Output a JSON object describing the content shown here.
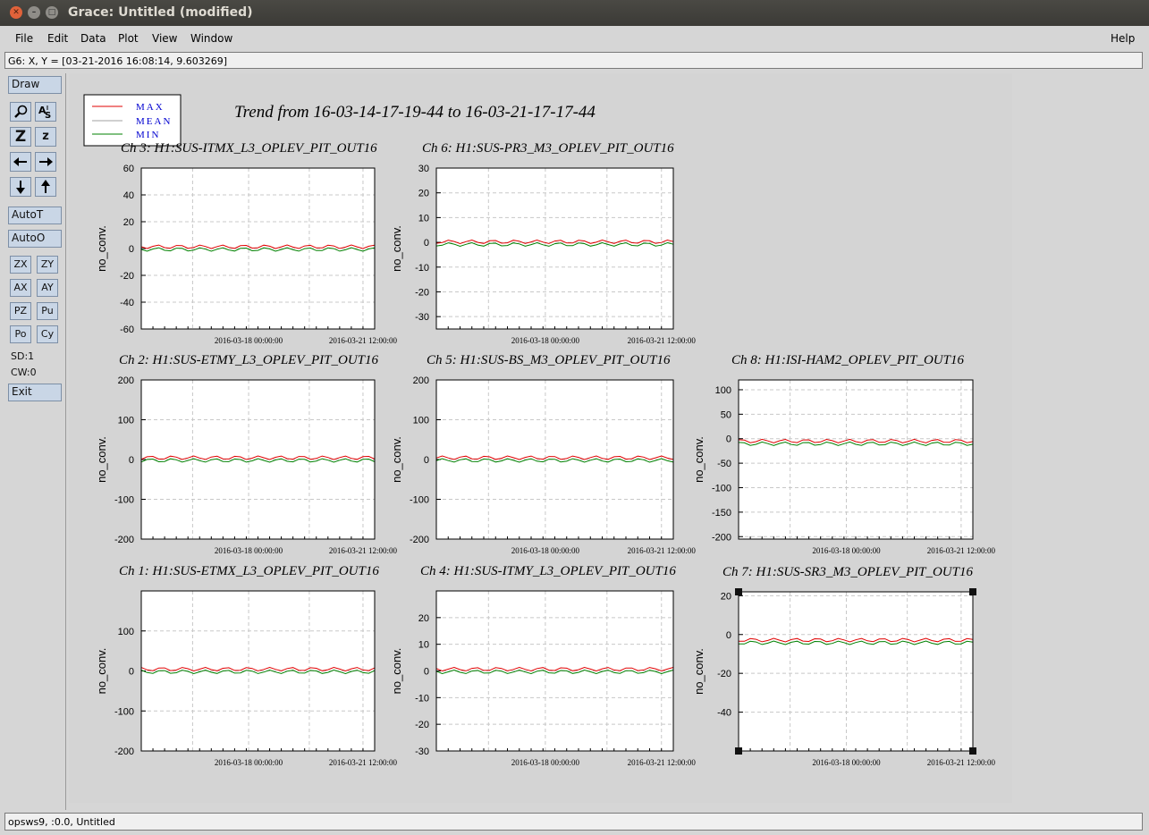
{
  "window": {
    "title": "Grace: Untitled (modified)"
  },
  "menu": {
    "file": "File",
    "edit": "Edit",
    "data": "Data",
    "plot": "Plot",
    "view": "View",
    "window": "Window",
    "help": "Help"
  },
  "locator": "G6: X, Y = [03-21-2016 16:08:14, 9.603269]",
  "toolbar": {
    "draw": "Draw",
    "zoom_icon": "magnifier-icon",
    "autoscale_text_icon": "autoscale-text-icon",
    "Z_label": "Z",
    "z_label": "z",
    "left_arrow_icon": "left-arrow-icon",
    "right_arrow_icon": "right-arrow-icon",
    "down_arrow_icon": "down-arrow-icon",
    "up_arrow_icon": "up-arrow-icon",
    "autot": "AutoT",
    "autoo": "AutoO",
    "zx": "ZX",
    "zy": "ZY",
    "ax": "AX",
    "ay": "AY",
    "pz": "PZ",
    "pu": "Pu",
    "po": "Po",
    "cy": "Cy",
    "sd": "SD:1",
    "cw": "CW:0",
    "exit": "Exit"
  },
  "status": "opsws9, :0.0, Untitled",
  "chart_data": {
    "type": "line",
    "title": "Trend from 16-03-14-17-19-44 to 16-03-21-17-17-44",
    "legend": {
      "placement": "top-left",
      "entries": [
        {
          "name": "MAX",
          "color": "#e00000"
        },
        {
          "name": "MEAN",
          "color": "#a0a0a0"
        },
        {
          "name": "MIN",
          "color": "#008000"
        }
      ]
    },
    "xtick_labels": [
      "2016-03-18 00:00:00",
      "2016-03-21 12:00:00"
    ],
    "ylabel": "no_conv.",
    "grid": true,
    "panels": [
      {
        "title": "Ch 3: H1:SUS-ITMX_L3_OPLEV_PIT_OUT16",
        "ylim": [
          -60,
          60
        ],
        "yticks": [
          60,
          40,
          20,
          0,
          -20,
          -40,
          -60
        ]
      },
      {
        "title": "Ch 6: H1:SUS-PR3_M3_OPLEV_PIT_OUT16",
        "ylim": [
          -35,
          30
        ],
        "yticks": [
          30,
          20,
          10,
          0,
          -10,
          -20,
          -30
        ]
      },
      {
        "title": "Ch 2: H1:SUS-ETMY_L3_OPLEV_PIT_OUT16",
        "ylim": [
          -200,
          200
        ],
        "yticks": [
          200,
          100,
          0,
          -100,
          -200
        ]
      },
      {
        "title": "Ch 5: H1:SUS-BS_M3_OPLEV_PIT_OUT16",
        "ylim": [
          -200,
          200
        ],
        "yticks": [
          200,
          100,
          0,
          -100,
          -200
        ]
      },
      {
        "title": "Ch 8: H1:ISI-HAM2_OPLEV_PIT_OUT16",
        "ylim": [
          -205,
          120
        ],
        "yticks": [
          100,
          50,
          0,
          -50,
          -100,
          -150,
          -200
        ]
      },
      {
        "title": "Ch 1: H1:SUS-ETMX_L3_OPLEV_PIT_OUT16",
        "ylim": [
          -200,
          200
        ],
        "yticks": [
          100,
          0,
          -100,
          -200
        ]
      },
      {
        "title": "Ch 4: H1:SUS-ITMY_L3_OPLEV_PIT_OUT16",
        "ylim": [
          -30,
          30
        ],
        "yticks": [
          20,
          10,
          0,
          -10,
          -20,
          -30
        ]
      },
      {
        "title": "Ch 7: H1:SUS-SR3_M3_OPLEV_PIT_OUT16",
        "ylim": [
          -60,
          22
        ],
        "yticks": [
          20,
          0,
          -20,
          -40
        ]
      }
    ]
  }
}
